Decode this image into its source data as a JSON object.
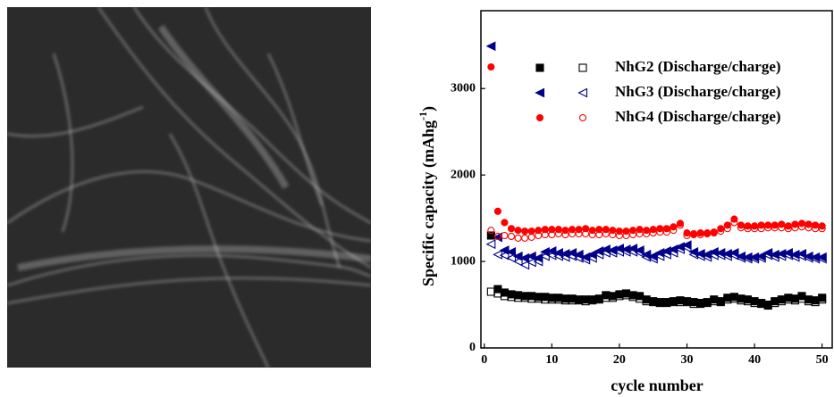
{
  "chart_data": {
    "type": "scatter",
    "x_label": "cycle number",
    "y_label": "Specific capacity (mAhg",
    "y_label_sup": "-1",
    "y_label_end": ")",
    "x": [
      1,
      2,
      3,
      4,
      5,
      6,
      7,
      8,
      9,
      10,
      11,
      12,
      13,
      14,
      15,
      16,
      17,
      18,
      19,
      20,
      21,
      22,
      23,
      24,
      25,
      26,
      27,
      28,
      29,
      30,
      31,
      32,
      33,
      34,
      35,
      36,
      37,
      38,
      39,
      40,
      41,
      42,
      43,
      44,
      45,
      46,
      47,
      48,
      49,
      50
    ],
    "xlim": [
      -0.5,
      51.5
    ],
    "xticks": [
      0,
      10,
      20,
      30,
      40,
      50
    ],
    "ylim": [
      0,
      3900
    ],
    "yticks": [
      0,
      1000,
      2000,
      3000
    ],
    "series": [
      {
        "name": "NhG2 (Discharge/charge)",
        "color": "#000000",
        "marker": "square",
        "discharge": [
          1300,
          680,
          640,
          620,
          610,
          600,
          600,
          590,
          590,
          580,
          580,
          570,
          570,
          560,
          560,
          560,
          570,
          610,
          600,
          620,
          630,
          610,
          600,
          560,
          540,
          530,
          530,
          540,
          550,
          540,
          530,
          520,
          530,
          560,
          540,
          580,
          590,
          570,
          560,
          540,
          520,
          500,
          540,
          560,
          580,
          570,
          600,
          560,
          550,
          580
        ],
        "charge": [
          650,
          630,
          600,
          590,
          580,
          580,
          570,
          570,
          560,
          560,
          560,
          550,
          550,
          550,
          540,
          550,
          560,
          580,
          580,
          600,
          610,
          590,
          570,
          540,
          530,
          520,
          520,
          530,
          530,
          530,
          510,
          510,
          520,
          540,
          530,
          560,
          570,
          550,
          540,
          520,
          510,
          490,
          520,
          540,
          560,
          550,
          570,
          540,
          530,
          560
        ]
      },
      {
        "name": "NhG3 (Discharge/charge)",
        "color": "#00008b",
        "marker": "triangle-left",
        "discharge": [
          3490,
          1280,
          1130,
          1110,
          1060,
          1040,
          1060,
          1040,
          1110,
          1120,
          1100,
          1090,
          1100,
          1080,
          1050,
          1080,
          1120,
          1140,
          1130,
          1150,
          1140,
          1150,
          1130,
          1080,
          1060,
          1100,
          1120,
          1140,
          1170,
          1190,
          1110,
          1090,
          1080,
          1110,
          1100,
          1090,
          1100,
          1060,
          1050,
          1050,
          1060,
          1100,
          1080,
          1090,
          1100,
          1080,
          1090,
          1060,
          1050,
          1050
        ],
        "charge": [
          1200,
          1080,
          1070,
          1040,
          1000,
          960,
          990,
          1000,
          1060,
          1070,
          1060,
          1050,
          1060,
          1040,
          1020,
          1040,
          1080,
          1100,
          1100,
          1110,
          1110,
          1110,
          1100,
          1050,
          1030,
          1060,
          1080,
          1100,
          1140,
          1160,
          1080,
          1060,
          1050,
          1070,
          1070,
          1060,
          1070,
          1040,
          1030,
          1030,
          1040,
          1070,
          1050,
          1060,
          1070,
          1050,
          1060,
          1040,
          1030,
          1030
        ]
      },
      {
        "name": "NhG4 (Discharge/charge)",
        "color": "#ff0000",
        "marker": "circle",
        "discharge": [
          3250,
          1580,
          1450,
          1380,
          1360,
          1350,
          1350,
          1360,
          1370,
          1370,
          1370,
          1360,
          1370,
          1370,
          1380,
          1360,
          1370,
          1370,
          1360,
          1350,
          1350,
          1360,
          1370,
          1360,
          1370,
          1380,
          1380,
          1400,
          1440,
          1330,
          1320,
          1330,
          1330,
          1340,
          1380,
          1420,
          1490,
          1420,
          1410,
          1410,
          1420,
          1420,
          1420,
          1430,
          1410,
          1430,
          1440,
          1430,
          1420,
          1410
        ],
        "charge": [
          1360,
          1290,
          1300,
          1290,
          1270,
          1270,
          1280,
          1300,
          1310,
          1310,
          1320,
          1310,
          1320,
          1320,
          1320,
          1310,
          1310,
          1320,
          1310,
          1300,
          1300,
          1310,
          1320,
          1320,
          1330,
          1340,
          1340,
          1360,
          1420,
          1300,
          1310,
          1310,
          1320,
          1330,
          1350,
          1380,
          1450,
          1390,
          1380,
          1380,
          1380,
          1390,
          1390,
          1390,
          1380,
          1390,
          1400,
          1390,
          1380,
          1380
        ]
      }
    ]
  }
}
